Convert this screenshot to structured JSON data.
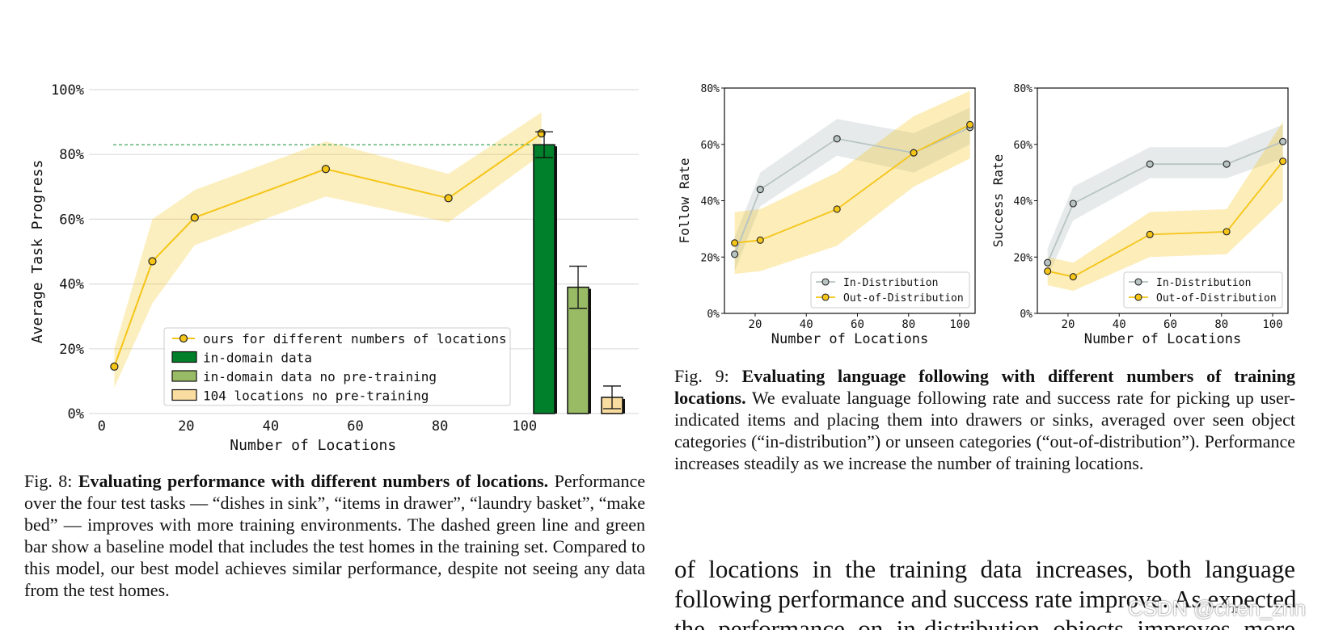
{
  "chart_data": [
    {
      "type": "line",
      "xlabel": "Number of Locations",
      "ylabel": "Average Task Progress",
      "xlim": [
        -3,
        127
      ],
      "ylim": [
        0,
        100
      ],
      "x_ticks": [
        0,
        20,
        40,
        60,
        80,
        100
      ],
      "x_tick_labels": [
        "0",
        "20",
        "40",
        "60",
        "80",
        "100"
      ],
      "y_ticks": [
        0,
        20,
        40,
        60,
        80,
        100
      ],
      "y_tick_labels": [
        "0%",
        "20%",
        "40%",
        "60%",
        "80%",
        "100%"
      ],
      "grid": "horizontal",
      "legend_position": "lower-right",
      "series": [
        {
          "name": "ours for different numbers of locations",
          "color": "#f5c518",
          "x": [
            3,
            12,
            22,
            53,
            82,
            104
          ],
          "y": [
            14.5,
            47,
            60.5,
            75.5,
            66.5,
            86.5
          ],
          "band_low": [
            8,
            34,
            52,
            67,
            59,
            80
          ],
          "band_high": [
            20,
            60,
            69,
            84,
            74,
            93
          ]
        }
      ],
      "bars": [
        {
          "name": "in-domain data",
          "color": "#00802b",
          "value": 83,
          "error": 4
        },
        {
          "name": "in-domain data no pre-training",
          "color": "#99bb66",
          "value": 39,
          "error": 6.5
        },
        {
          "name": "104 locations no pre-training",
          "color": "#f9dca0",
          "value": 5,
          "error": 3.5
        }
      ],
      "baseline": {
        "value": 83,
        "color": "#2e9e4a",
        "style": "dashed"
      }
    },
    {
      "type": "line",
      "xlabel": "Number of Locations",
      "ylabel": "Follow Rate",
      "xlim": [
        8,
        106
      ],
      "ylim": [
        0,
        80
      ],
      "x_ticks": [
        20,
        40,
        60,
        80,
        100
      ],
      "x_tick_labels": [
        "20",
        "40",
        "60",
        "80",
        "100"
      ],
      "y_ticks": [
        0,
        20,
        40,
        60,
        80
      ],
      "y_tick_labels": [
        "0%",
        "20%",
        "40%",
        "60%",
        "80%"
      ],
      "legend_position": "lower-right",
      "series": [
        {
          "name": "In-Distribution",
          "color": "#b8c4c2",
          "x": [
            12,
            22,
            52,
            82,
            104
          ],
          "y": [
            21,
            44,
            62,
            57,
            66
          ],
          "band_low": [
            15,
            38,
            56,
            50,
            60
          ],
          "band_high": [
            27,
            50,
            69,
            64,
            73
          ]
        },
        {
          "name": "Out-of-Distribution",
          "color": "#f5c518",
          "x": [
            12,
            22,
            52,
            82,
            104
          ],
          "y": [
            25,
            26,
            37,
            57,
            67
          ],
          "band_low": [
            14,
            15,
            24,
            45,
            55
          ],
          "band_high": [
            36,
            37,
            50,
            70,
            79
          ]
        }
      ]
    },
    {
      "type": "line",
      "xlabel": "Number of Locations",
      "ylabel": "Success Rate",
      "xlim": [
        8,
        106
      ],
      "ylim": [
        0,
        80
      ],
      "x_ticks": [
        20,
        40,
        60,
        80,
        100
      ],
      "x_tick_labels": [
        "20",
        "40",
        "60",
        "80",
        "100"
      ],
      "y_ticks": [
        0,
        20,
        40,
        60,
        80
      ],
      "y_tick_labels": [
        "0%",
        "20%",
        "40%",
        "60%",
        "80%"
      ],
      "legend_position": "lower-right",
      "series": [
        {
          "name": "In-Distribution",
          "color": "#b8c4c2",
          "x": [
            12,
            22,
            52,
            82,
            104
          ],
          "y": [
            18,
            39,
            53,
            53,
            61
          ],
          "band_low": [
            13,
            33,
            48,
            48,
            55
          ],
          "band_high": [
            23,
            45,
            59,
            59,
            67
          ]
        },
        {
          "name": "Out-of-Distribution",
          "color": "#f5c518",
          "x": [
            12,
            22,
            52,
            82,
            104
          ],
          "y": [
            15,
            13,
            28,
            29,
            54
          ],
          "band_low": [
            10,
            8,
            20,
            21,
            40
          ],
          "band_high": [
            20,
            18,
            36,
            37,
            68
          ]
        }
      ]
    }
  ],
  "captions": {
    "fig8": {
      "label": "Fig. 8: ",
      "title": "Evaluating performance with different numbers of locations.",
      "text": " Performance over the four test tasks — “dishes in sink”, “items in drawer”, “laundry basket”, “make bed” — improves with more training environments. The dashed green line and green bar show a baseline model that includes the test homes in the training set. Compared to this model, our best model achieves similar performance, despite not seeing any data from the test homes."
    },
    "fig9": {
      "label": "Fig. 9: ",
      "title": "Evaluating language following with different numbers of training locations.",
      "text": " We evaluate language following rate and success rate for picking up user-indicated items and placing them into drawers or sinks, averaged over seen object categories (“in-distribution”) or unseen categories (“out-of-distribution”). Performance increases steadily as we increase the number of training locations."
    }
  },
  "body_text": [
    "of locations in the training data increases, both language",
    "following performance and success rate improve. As expected,",
    "the performance on in-distribution objects improves more"
  ],
  "watermark": "CSDN @chen_znn"
}
